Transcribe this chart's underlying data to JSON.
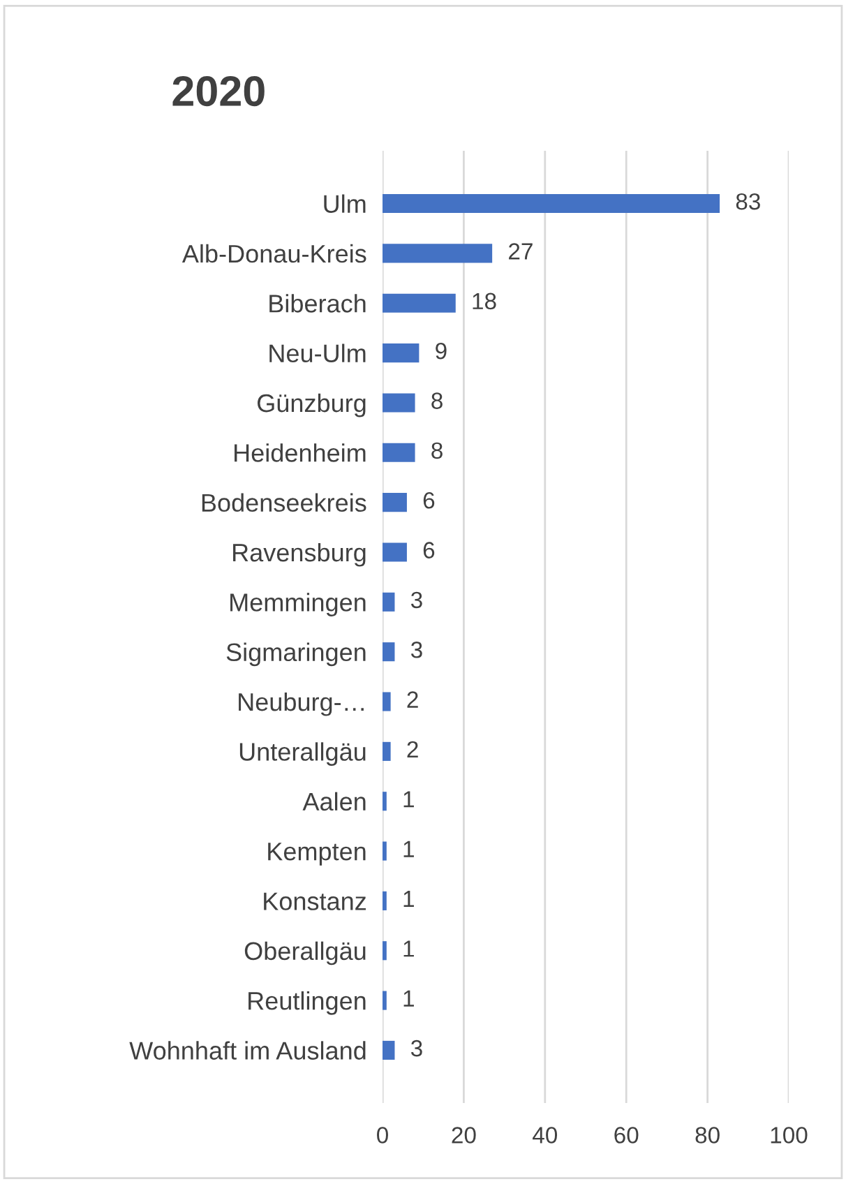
{
  "chart_data": {
    "type": "bar",
    "orientation": "horizontal",
    "title": "2020",
    "categories": [
      "Ulm",
      "Alb-Donau-Kreis",
      "Biberach",
      "Neu-Ulm",
      "Günzburg",
      "Heidenheim",
      "Bodenseekreis",
      "Ravensburg",
      "Memmingen",
      "Sigmaringen",
      "Neuburg-…",
      "Unterallgäu",
      "Aalen",
      "Kempten",
      "Konstanz",
      "Oberallgäu",
      "Reutlingen",
      "Wohnhaft im Ausland"
    ],
    "values": [
      83,
      27,
      18,
      9,
      8,
      8,
      6,
      6,
      3,
      3,
      2,
      2,
      1,
      1,
      1,
      1,
      1,
      3
    ],
    "color": "#4472c4",
    "xlim": [
      0,
      100
    ],
    "xticks": [
      0,
      20,
      40,
      60,
      80,
      100
    ],
    "grid": "x",
    "data_labels": true
  }
}
